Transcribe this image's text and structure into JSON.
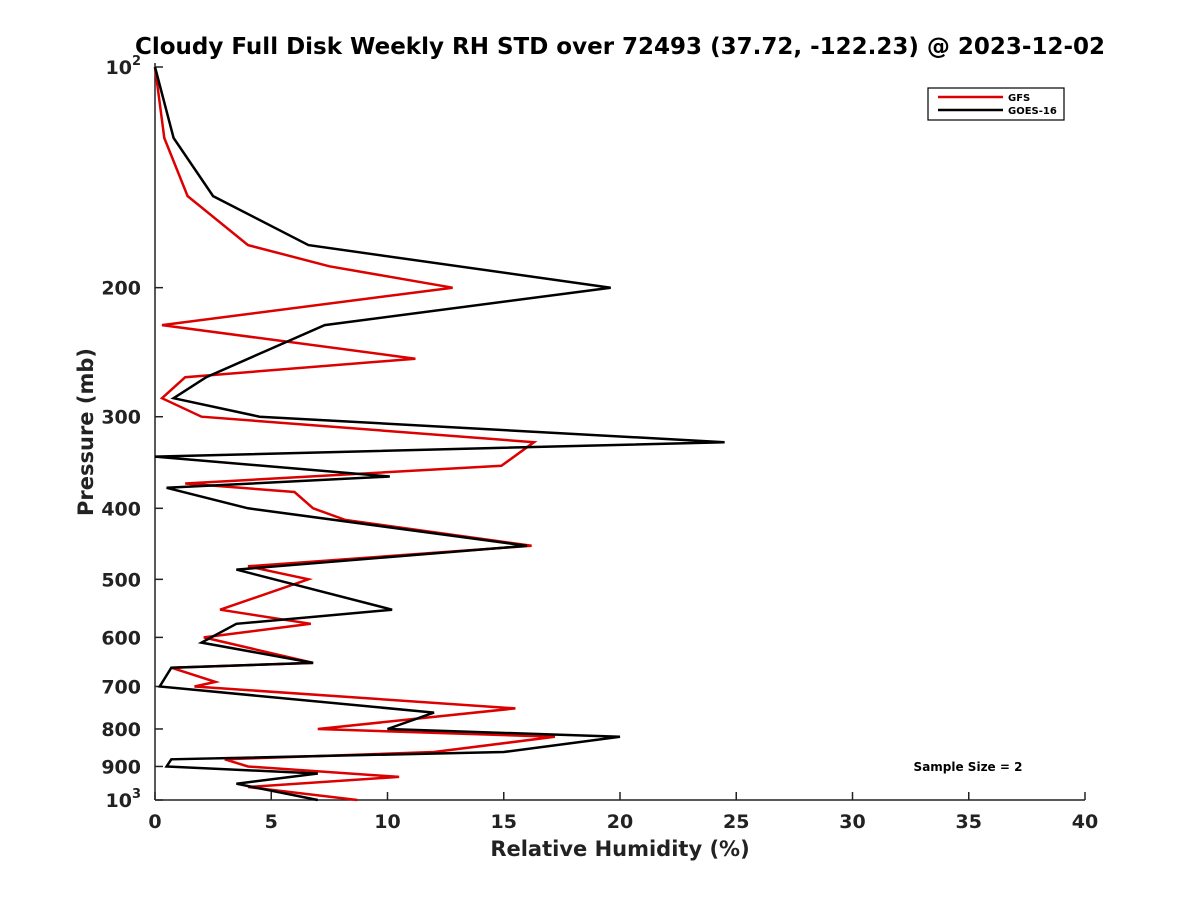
{
  "chart_data": {
    "type": "line",
    "title": "Cloudy Full Disk Weekly RH STD over 72493 (37.72, -122.23) @ 2023-12-02",
    "xlabel": "Relative Humidity (%)",
    "ylabel": "Pressure (mb)",
    "xlim": [
      0,
      40
    ],
    "ylim": [
      100,
      1000
    ],
    "yscale": "log",
    "yaxis_reversed": true,
    "x_ticks": [
      0,
      5,
      10,
      15,
      20,
      25,
      30,
      35,
      40
    ],
    "x_tick_labels": [
      "0",
      "5",
      "10",
      "15",
      "20",
      "25",
      "30",
      "35",
      "40"
    ],
    "y_ticks": [
      100,
      200,
      300,
      400,
      500,
      600,
      700,
      800,
      900,
      1000
    ],
    "y_tick_labels": [
      {
        "base": "10",
        "exp": "2"
      },
      {
        "base": "200",
        "exp": ""
      },
      {
        "base": "300",
        "exp": ""
      },
      {
        "base": "400",
        "exp": ""
      },
      {
        "base": "500",
        "exp": ""
      },
      {
        "base": "600",
        "exp": ""
      },
      {
        "base": "700",
        "exp": ""
      },
      {
        "base": "800",
        "exp": ""
      },
      {
        "base": "900",
        "exp": ""
      },
      {
        "base": "10",
        "exp": "3"
      }
    ],
    "legend_position": "top-right",
    "annotation": "Sample Size = 2",
    "grid": false,
    "series": [
      {
        "name": "GFS",
        "color": "#dd0000",
        "points": [
          {
            "x": 0.0,
            "p": 100
          },
          {
            "x": 0.4,
            "p": 125
          },
          {
            "x": 1.4,
            "p": 150
          },
          {
            "x": 4.0,
            "p": 175
          },
          {
            "x": 7.5,
            "p": 187
          },
          {
            "x": 12.8,
            "p": 200
          },
          {
            "x": 0.3,
            "p": 225
          },
          {
            "x": 11.2,
            "p": 250
          },
          {
            "x": 1.3,
            "p": 265
          },
          {
            "x": 0.3,
            "p": 283
          },
          {
            "x": 2.0,
            "p": 300
          },
          {
            "x": 16.3,
            "p": 325
          },
          {
            "x": 14.9,
            "p": 350
          },
          {
            "x": 1.3,
            "p": 370
          },
          {
            "x": 6.0,
            "p": 380
          },
          {
            "x": 6.8,
            "p": 400
          },
          {
            "x": 8.2,
            "p": 415
          },
          {
            "x": 16.2,
            "p": 450
          },
          {
            "x": 4.0,
            "p": 480
          },
          {
            "x": 6.6,
            "p": 500
          },
          {
            "x": 2.8,
            "p": 550
          },
          {
            "x": 6.7,
            "p": 575
          },
          {
            "x": 2.1,
            "p": 600
          },
          {
            "x": 6.8,
            "p": 650
          },
          {
            "x": 0.7,
            "p": 660
          },
          {
            "x": 2.6,
            "p": 690
          },
          {
            "x": 1.7,
            "p": 700
          },
          {
            "x": 15.5,
            "p": 750
          },
          {
            "x": 7.0,
            "p": 800
          },
          {
            "x": 17.2,
            "p": 820
          },
          {
            "x": 12.0,
            "p": 860
          },
          {
            "x": 3.0,
            "p": 880
          },
          {
            "x": 4.0,
            "p": 900
          },
          {
            "x": 10.5,
            "p": 930
          },
          {
            "x": 4.0,
            "p": 960
          },
          {
            "x": 8.7,
            "p": 1000
          }
        ]
      },
      {
        "name": "GOES-16",
        "color": "#000000",
        "points": [
          {
            "x": 0.0,
            "p": 100
          },
          {
            "x": 0.8,
            "p": 125
          },
          {
            "x": 2.5,
            "p": 150
          },
          {
            "x": 6.6,
            "p": 175
          },
          {
            "x": 19.6,
            "p": 200
          },
          {
            "x": 7.3,
            "p": 225
          },
          {
            "x": 4.9,
            "p": 243
          },
          {
            "x": 2.2,
            "p": 265
          },
          {
            "x": 0.8,
            "p": 283
          },
          {
            "x": 4.5,
            "p": 300
          },
          {
            "x": 24.5,
            "p": 325
          },
          {
            "x": 0.0,
            "p": 340
          },
          {
            "x": 10.1,
            "p": 362
          },
          {
            "x": 0.5,
            "p": 375
          },
          {
            "x": 4.0,
            "p": 400
          },
          {
            "x": 16.0,
            "p": 450
          },
          {
            "x": 3.5,
            "p": 485
          },
          {
            "x": 10.2,
            "p": 550
          },
          {
            "x": 3.5,
            "p": 575
          },
          {
            "x": 2.0,
            "p": 610
          },
          {
            "x": 6.8,
            "p": 650
          },
          {
            "x": 0.7,
            "p": 660
          },
          {
            "x": 0.2,
            "p": 700
          },
          {
            "x": 12.0,
            "p": 760
          },
          {
            "x": 10.0,
            "p": 800
          },
          {
            "x": 20.0,
            "p": 820
          },
          {
            "x": 15.0,
            "p": 860
          },
          {
            "x": 0.7,
            "p": 880
          },
          {
            "x": 0.5,
            "p": 900
          },
          {
            "x": 7.0,
            "p": 920
          },
          {
            "x": 3.5,
            "p": 950
          },
          {
            "x": 7.0,
            "p": 1000
          }
        ]
      }
    ]
  }
}
